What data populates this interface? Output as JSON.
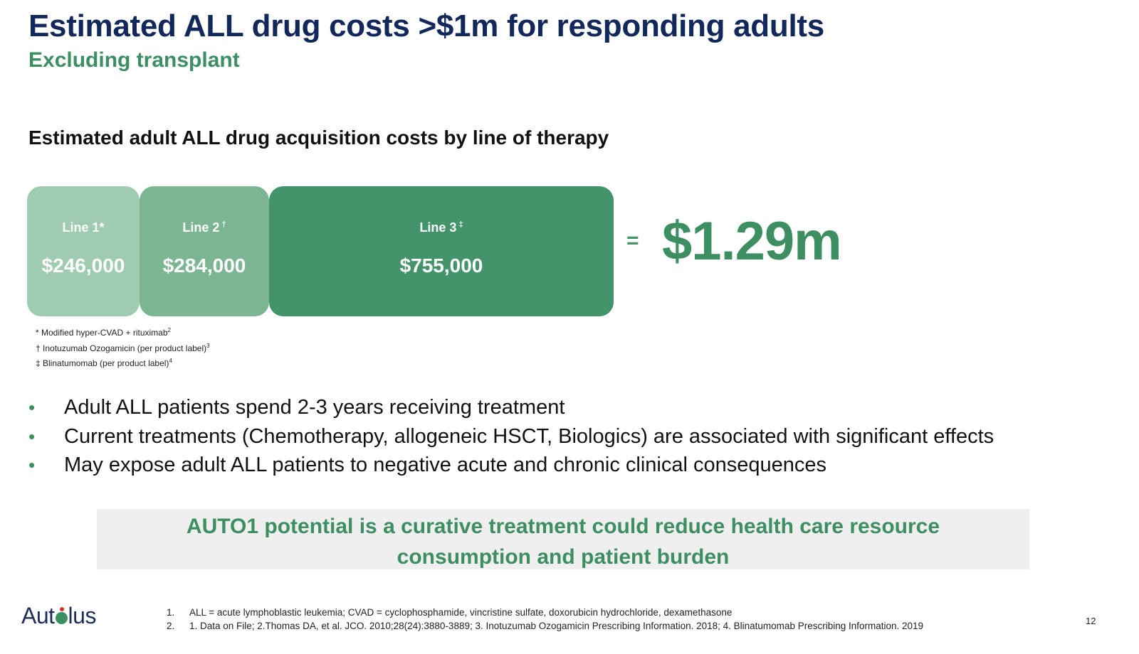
{
  "slide": {
    "title": "Estimated ALL drug costs >$1m for responding adults",
    "subtitle": "Excluding transplant",
    "section_heading": "Estimated adult ALL drug acquisition costs by line of therapy"
  },
  "cost_boxes": [
    {
      "label": "Line 1*",
      "mark": "",
      "value": "$246,000",
      "color": "#9fcbb0"
    },
    {
      "label": "Line 2",
      "mark": "†",
      "value": "$284,000",
      "color": "#7bb592"
    },
    {
      "label": "Line 3",
      "mark": "‡",
      "value": "$755,000",
      "color": "#43946a"
    }
  ],
  "equals_sign": "=",
  "total": "$1.29m",
  "box_footnotes": [
    {
      "text": "* Modified hyper-CVAD + rituximab",
      "ref": "2"
    },
    {
      "text": "† Inotuzumab Ozogamicin (per product label)",
      "ref": "3"
    },
    {
      "text": "‡ Blinatumomab (per product label)",
      "ref": "4"
    }
  ],
  "bullets": [
    "Adult ALL patients spend 2-3 years receiving treatment",
    "Current treatments (Chemotherapy, allogeneic HSCT, Biologics) are associated with significant effects",
    "May expose adult ALL patients to negative acute and chronic clinical consequences"
  ],
  "bullet_symbol": "•",
  "callout": {
    "line1": "AUTO1 potential is a curative treatment could reduce health care resource",
    "line2": "consumption and patient burden"
  },
  "logo": {
    "left": "Aut",
    "right": "lus",
    "colors": {
      "text": "#1e2d5c",
      "o": "#3d8f62",
      "dot": "#d9302d"
    }
  },
  "references": [
    {
      "num": "1.",
      "text": "ALL = acute lymphoblastic leukemia; CVAD = cyclophosphamide, vincristine sulfate, doxorubicin hydrochloride, dexamethasone"
    },
    {
      "num": "2.",
      "text": "1. Data on File; 2.Thomas DA, et al. JCO. 2010;28(24):3880-3889; 3.  Inotuzumab Ozogamicin Prescribing Information. 2018; 4. Blinatumomab Prescribing Information. 2019"
    }
  ],
  "page_number": "12",
  "colors": {
    "title": "#12275a",
    "accent_green": "#3d8f62",
    "callout_bg": "#efefef"
  }
}
